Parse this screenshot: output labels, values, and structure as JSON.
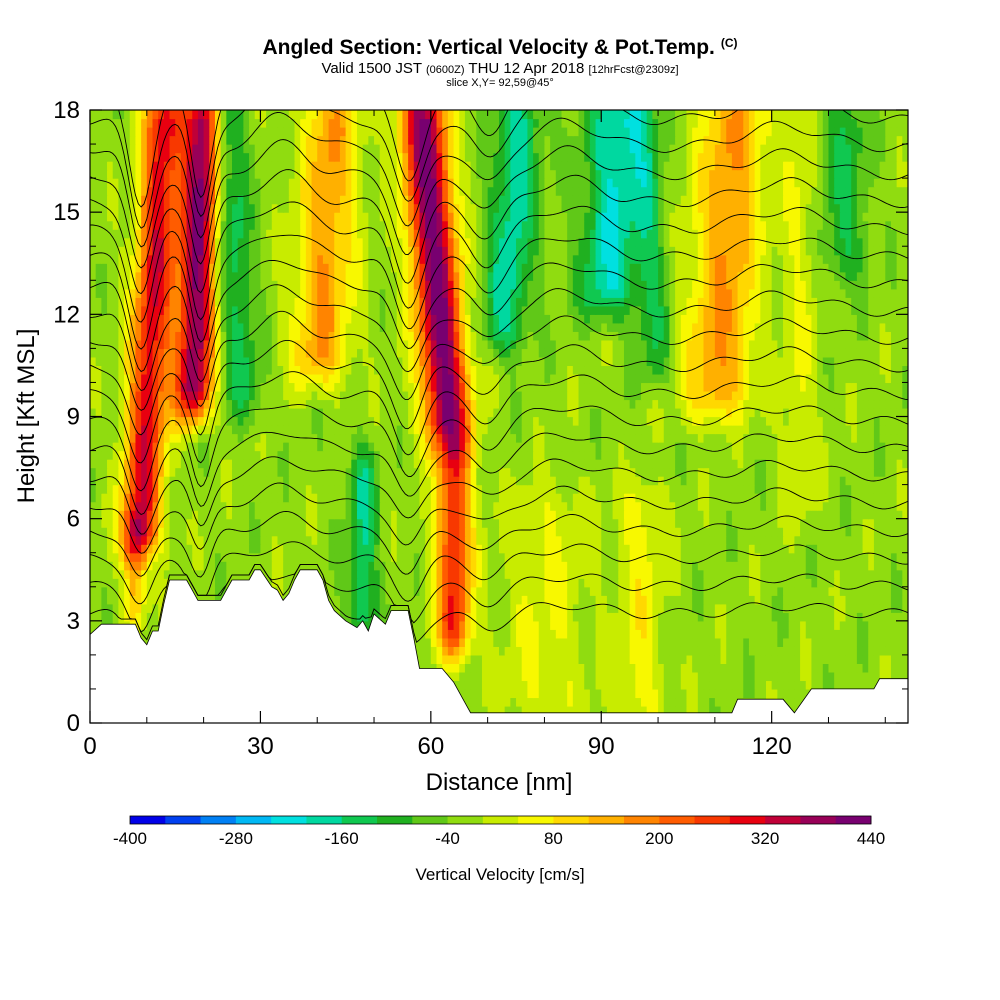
{
  "title": {
    "main": "Angled Section: Vertical Velocity & Pot.Temp.",
    "main_suffix": "(C)",
    "valid_prefix": "Valid 1500 JST",
    "valid_utc": "(0600Z)",
    "valid_date": "THU 12 Apr 2018",
    "valid_fcst": "[12hrFcst@2309z]",
    "slice": "slice X,Y= 92,59@45°"
  },
  "chart_data": {
    "type": "heatmap",
    "xlabel": "Distance [nm]",
    "ylabel": "Height [Kft MSL]",
    "xlim": [
      0,
      144
    ],
    "ylim": [
      0,
      18
    ],
    "x_ticks": [
      0,
      30,
      60,
      90,
      120
    ],
    "y_ticks": [
      0,
      3,
      6,
      9,
      12,
      15,
      18
    ],
    "x_minor_step": 10,
    "y_minor_step": 1,
    "colorbar": {
      "label": "Vertical Velocity [cm/s]",
      "min": -400,
      "step": 40,
      "tick_labels": [
        -400,
        -280,
        -160,
        -40,
        80,
        200,
        320,
        440
      ],
      "colors": [
        "#0000e8",
        "#0040f0",
        "#0080f4",
        "#00b8f4",
        "#00e0e0",
        "#00d8a0",
        "#10c850",
        "#20b020",
        "#60c818",
        "#90dc10",
        "#c8ec00",
        "#f8f800",
        "#ffd800",
        "#ffb000",
        "#ff8400",
        "#ff5c00",
        "#f83800",
        "#e80010",
        "#c00038",
        "#980058",
        "#780070"
      ]
    },
    "w_bands": [
      {
        "x": 10,
        "drift": 0.35,
        "width": 3.5,
        "value": 330,
        "low": 5,
        "high": 18.5
      },
      {
        "x": 18,
        "drift": 0.2,
        "width": 3.2,
        "value": 420,
        "low": 9,
        "high": 18.5
      },
      {
        "x": 63,
        "drift": -0.5,
        "width": 4.0,
        "value": 440,
        "low": 8,
        "high": 18.5
      },
      {
        "x": 64,
        "drift": 0.0,
        "width": 3.0,
        "value": 300,
        "low": 2,
        "high": 8
      },
      {
        "x": 27,
        "drift": -0.3,
        "width": 3.0,
        "value": -120,
        "low": 9,
        "high": 18.5
      },
      {
        "x": 48,
        "drift": 0.0,
        "width": 2.5,
        "value": -140,
        "low": 2.5,
        "high": 8
      },
      {
        "x": 72,
        "drift": 0.4,
        "width": 4.0,
        "value": -160,
        "low": 11,
        "high": 18.5
      },
      {
        "x": 90,
        "drift": 0.3,
        "width": 5.0,
        "value": -180,
        "low": 12,
        "high": 18.5
      },
      {
        "x": 100,
        "drift": -0.3,
        "width": 3.0,
        "value": -100,
        "low": 10,
        "high": 18.5
      },
      {
        "x": 133,
        "drift": 0.0,
        "width": 4.0,
        "value": -100,
        "low": 13,
        "high": 18.5
      },
      {
        "x": 40,
        "drift": 0.3,
        "width": 5.0,
        "value": 180,
        "low": 10,
        "high": 18.5
      },
      {
        "x": 110,
        "drift": 0.4,
        "width": 6.0,
        "value": 180,
        "low": 9,
        "high": 18.5
      },
      {
        "x": 125,
        "drift": 0.0,
        "width": 3.0,
        "value": 60,
        "low": 6,
        "high": 18.5
      },
      {
        "x": 80,
        "drift": 0.0,
        "width": 8.0,
        "value": 60,
        "low": 0,
        "high": 7
      },
      {
        "x": 97,
        "drift": 0.0,
        "width": 4.0,
        "value": 80,
        "low": 0,
        "high": 7
      },
      {
        "x": 8,
        "drift": 0.0,
        "width": 2.0,
        "value": 160,
        "low": 3,
        "high": 6
      }
    ],
    "w_background": -20,
    "terrain": [
      [
        0,
        2.6
      ],
      [
        2,
        2.9
      ],
      [
        8,
        2.9
      ],
      [
        9,
        2.5
      ],
      [
        10,
        2.3
      ],
      [
        11,
        2.7
      ],
      [
        12,
        2.7
      ],
      [
        13,
        3.5
      ],
      [
        14,
        4.2
      ],
      [
        17,
        4.2
      ],
      [
        18,
        3.9
      ],
      [
        19,
        3.6
      ],
      [
        23,
        3.6
      ],
      [
        24,
        3.9
      ],
      [
        25,
        4.2
      ],
      [
        28,
        4.2
      ],
      [
        29,
        4.5
      ],
      [
        30,
        4.5
      ],
      [
        32,
        4.0
      ],
      [
        33,
        3.9
      ],
      [
        34,
        3.6
      ],
      [
        35,
        3.8
      ],
      [
        36,
        4.2
      ],
      [
        37,
        4.5
      ],
      [
        40,
        4.5
      ],
      [
        41,
        4.2
      ],
      [
        42,
        3.6
      ],
      [
        43,
        3.3
      ],
      [
        45,
        3.0
      ],
      [
        47,
        2.8
      ],
      [
        48,
        3.0
      ],
      [
        49,
        2.7
      ],
      [
        50,
        3.2
      ],
      [
        52,
        2.9
      ],
      [
        53,
        3.3
      ],
      [
        56,
        3.3
      ],
      [
        57,
        2.5
      ],
      [
        58,
        1.6
      ],
      [
        62,
        1.6
      ],
      [
        64,
        1.2
      ],
      [
        66,
        0.6
      ],
      [
        67,
        0.3
      ],
      [
        113,
        0.3
      ],
      [
        114,
        0.7
      ],
      [
        122,
        0.7
      ],
      [
        124,
        0.3
      ],
      [
        127,
        1.0
      ],
      [
        129,
        1.0
      ],
      [
        138,
        1.0
      ],
      [
        139,
        1.3
      ],
      [
        144,
        1.3
      ]
    ],
    "theta_contours": {
      "count": 20,
      "lowest_base": 3.2,
      "top_base": 18.5,
      "dips": [
        {
          "x": 9,
          "amp": 3.2,
          "width": 3.0
        },
        {
          "x": 19.5,
          "amp": 3.0,
          "width": 2.5
        },
        {
          "x": 56,
          "amp": 2.6,
          "width": 3.5
        },
        {
          "x": 70,
          "amp": 1.2,
          "width": 4.0
        }
      ],
      "bumps": [
        {
          "x": 34,
          "amp": 1.0,
          "width": 6.0
        },
        {
          "x": 84,
          "amp": 0.8,
          "width": 8.0
        },
        {
          "x": 122,
          "amp": 0.7,
          "width": 10.0
        }
      ]
    }
  }
}
